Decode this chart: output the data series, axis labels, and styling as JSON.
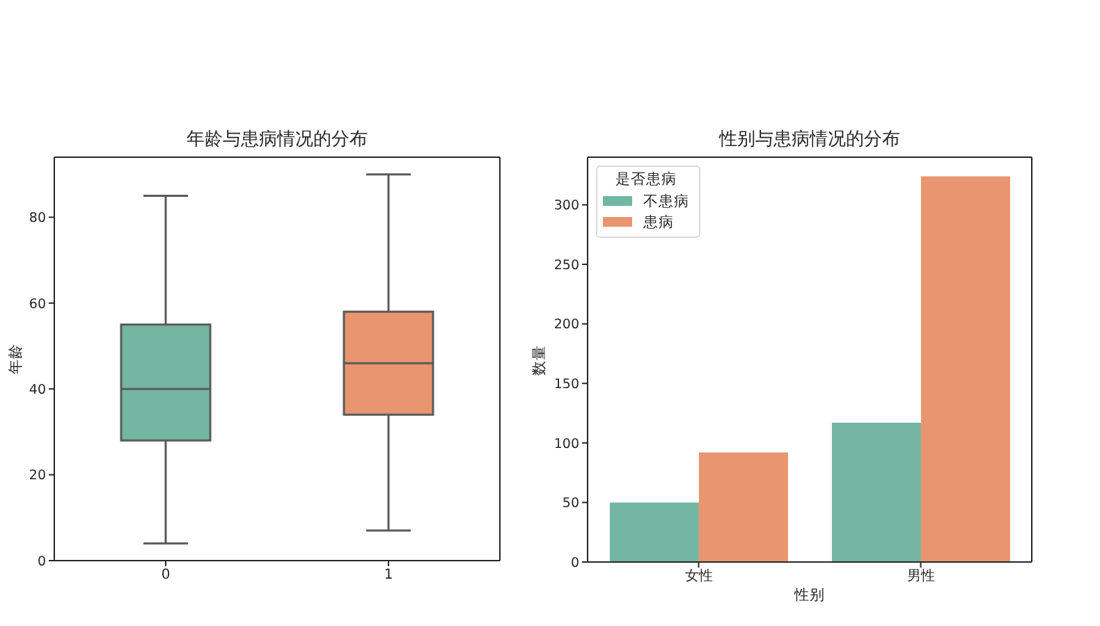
{
  "chart_data": [
    {
      "type": "box",
      "title": "年龄与患病情况的分布",
      "ylabel": "年龄",
      "categories": [
        "0",
        "1"
      ],
      "colors": [
        "#73b6a1",
        "#e9956f"
      ],
      "boxes": [
        {
          "low": 4,
          "q1": 28,
          "median": 40,
          "q3": 55,
          "high": 85
        },
        {
          "low": 7,
          "q1": 34,
          "median": 46,
          "q3": 58,
          "high": 90
        }
      ],
      "ylim": [
        0,
        94
      ],
      "yticks": [
        0,
        20,
        40,
        60,
        80
      ]
    },
    {
      "type": "bar",
      "title": "性别与患病情况的分布",
      "xlabel": "性别",
      "ylabel": "数量",
      "legend_title": "是否患病",
      "categories": [
        "女性",
        "男性"
      ],
      "series": [
        {
          "name": "不患病",
          "color": "#73b6a1",
          "values": [
            50,
            117
          ]
        },
        {
          "name": "患病",
          "color": "#e9956f",
          "values": [
            92,
            324
          ]
        }
      ],
      "ylim": [
        0,
        340
      ],
      "yticks": [
        0,
        50,
        100,
        150,
        200,
        250,
        300
      ],
      "legend": "top left"
    }
  ]
}
